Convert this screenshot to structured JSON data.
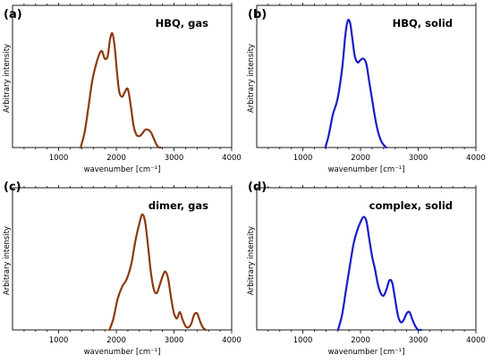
{
  "chart_data": [
    {
      "type": "line",
      "panel_label": "(a)",
      "title": "HBQ, gas",
      "xlabel": "wavenumber [cm⁻¹]",
      "ylabel": "Arbitrary intensity",
      "xlim": [
        200,
        4000
      ],
      "ylim": [
        0,
        1.12
      ],
      "xticks": [
        1000,
        2000,
        3000,
        4000
      ],
      "xtick_labels": [
        "1000",
        "2000",
        "3000",
        "4000"
      ],
      "grid": false,
      "color": "#8b3a0f",
      "series": [
        {
          "x": [
            1380,
            1450,
            1520,
            1580,
            1640,
            1700,
            1750,
            1800,
            1850,
            1890,
            1930,
            1970,
            2010,
            2050,
            2100,
            2150,
            2200,
            2250,
            2300,
            2350,
            2400,
            2450,
            2500,
            2550,
            2600,
            2650,
            2700,
            2740,
            2770
          ],
          "y": [
            0.0,
            0.12,
            0.33,
            0.52,
            0.64,
            0.73,
            0.76,
            0.7,
            0.72,
            0.85,
            0.9,
            0.8,
            0.6,
            0.44,
            0.4,
            0.44,
            0.46,
            0.33,
            0.17,
            0.1,
            0.09,
            0.11,
            0.14,
            0.14,
            0.12,
            0.07,
            0.02,
            0.0,
            0.0
          ]
        }
      ]
    },
    {
      "type": "line",
      "panel_label": "(b)",
      "title": "HBQ, solid",
      "xlabel": "wavenumber [cm⁻¹]",
      "ylabel": "Arbitrary intensity",
      "xlim": [
        200,
        4000
      ],
      "ylim": [
        0,
        1.12
      ],
      "xticks": [
        1000,
        2000,
        3000,
        4000
      ],
      "xtick_labels": [
        "1000",
        "2000",
        "3000",
        "4000"
      ],
      "grid": false,
      "color": "#1a1ac8",
      "series": [
        {
          "x": [
            1390,
            1450,
            1520,
            1600,
            1680,
            1740,
            1780,
            1820,
            1860,
            1900,
            1950,
            2000,
            2050,
            2100,
            2150,
            2200,
            2250,
            2300,
            2360,
            2420,
            2450
          ],
          "y": [
            0.0,
            0.1,
            0.26,
            0.38,
            0.62,
            0.9,
            1.0,
            0.98,
            0.85,
            0.72,
            0.67,
            0.69,
            0.7,
            0.66,
            0.52,
            0.38,
            0.24,
            0.13,
            0.05,
            0.01,
            0.0
          ]
        }
      ]
    },
    {
      "type": "line",
      "panel_label": "(c)",
      "title": "dimer, gas",
      "xlabel": "wavenumber [cm⁻¹]",
      "ylabel": "Arbitrary intensity",
      "xlim": [
        200,
        4000
      ],
      "ylim": [
        0,
        1.12
      ],
      "xticks": [
        1000,
        2000,
        3000,
        4000
      ],
      "xtick_labels": [
        "1000",
        "2000",
        "3000",
        "4000"
      ],
      "grid": false,
      "color": "#8b3a0f",
      "series": [
        {
          "x": [
            1880,
            1950,
            2020,
            2100,
            2180,
            2260,
            2330,
            2400,
            2450,
            2500,
            2550,
            2600,
            2650,
            2700,
            2750,
            2800,
            2850,
            2900,
            2950,
            3000,
            3050,
            3100,
            3150,
            3200,
            3250,
            3300,
            3350,
            3400,
            3450,
            3500,
            3550
          ],
          "y": [
            0.0,
            0.09,
            0.24,
            0.34,
            0.4,
            0.52,
            0.7,
            0.84,
            0.91,
            0.85,
            0.66,
            0.45,
            0.32,
            0.29,
            0.35,
            0.42,
            0.46,
            0.4,
            0.25,
            0.13,
            0.09,
            0.14,
            0.08,
            0.03,
            0.02,
            0.05,
            0.12,
            0.13,
            0.07,
            0.02,
            0.0
          ]
        }
      ]
    },
    {
      "type": "line",
      "panel_label": "(d)",
      "title": "complex, solid",
      "xlabel": "wavenumber [cm⁻¹]",
      "ylabel": "Arbitrary intensity",
      "xlim": [
        200,
        4000
      ],
      "ylim": [
        0,
        1.12
      ],
      "xticks": [
        1000,
        2000,
        3000,
        4000
      ],
      "xtick_labels": [
        "1000",
        "2000",
        "3000",
        "4000"
      ],
      "grid": false,
      "color": "#1a1ac8",
      "series": [
        {
          "x": [
            1610,
            1680,
            1750,
            1820,
            1880,
            1940,
            2000,
            2050,
            2100,
            2150,
            2200,
            2250,
            2300,
            2350,
            2400,
            2450,
            2500,
            2550,
            2600,
            2650,
            2700,
            2750,
            2800,
            2850,
            2900,
            2950,
            3000,
            3050
          ],
          "y": [
            0.0,
            0.12,
            0.32,
            0.52,
            0.68,
            0.78,
            0.85,
            0.89,
            0.86,
            0.72,
            0.58,
            0.48,
            0.36,
            0.29,
            0.27,
            0.32,
            0.39,
            0.37,
            0.24,
            0.11,
            0.06,
            0.08,
            0.13,
            0.14,
            0.08,
            0.03,
            0.0,
            0.0
          ]
        }
      ]
    }
  ]
}
